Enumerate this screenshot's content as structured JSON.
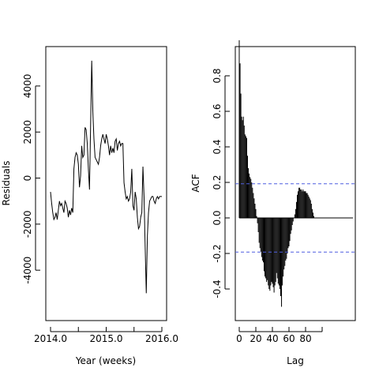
{
  "chart_data": [
    {
      "type": "line",
      "xlabel": "Year (weeks)",
      "ylabel": "Residuals",
      "xlim": [
        2014.0,
        2016.0
      ],
      "ylim": [
        -5400,
        5300
      ],
      "x_ticks": [
        2014.0,
        2014.5,
        2015.0,
        2015.5,
        2016.0
      ],
      "x_tick_labels": [
        "2014.0",
        "",
        "2015.0",
        "",
        "2016.0"
      ],
      "y_ticks": [
        -4000,
        -2000,
        0,
        2000,
        4000
      ],
      "y_tick_labels": [
        "-4000",
        "-2000",
        "0",
        "2000",
        "4000"
      ],
      "series": [
        {
          "x": [
            2014.0,
            2014.02,
            2014.04,
            2014.06,
            2014.08,
            2014.1,
            2014.12,
            2014.14,
            2014.16,
            2014.18,
            2014.2,
            2014.22,
            2014.24,
            2014.26,
            2014.28,
            2014.3,
            2014.32,
            2014.34,
            2014.36,
            2014.38,
            2014.4,
            2014.42,
            2014.44,
            2014.46,
            2014.48,
            2014.5,
            2014.52,
            2014.54,
            2014.56,
            2014.58,
            2014.6,
            2014.62,
            2014.64,
            2014.66,
            2014.68,
            2014.7,
            2014.72,
            2014.74,
            2014.76,
            2014.78,
            2014.8,
            2014.82,
            2014.84,
            2014.86,
            2014.88,
            2014.9,
            2014.92,
            2014.94,
            2014.96,
            2014.98,
            2015.0,
            2015.02,
            2015.04,
            2015.06,
            2015.08,
            2015.1,
            2015.12,
            2015.14,
            2015.16,
            2015.18,
            2015.2,
            2015.22,
            2015.24,
            2015.26,
            2015.28,
            2015.3,
            2015.32,
            2015.34,
            2015.36,
            2015.38,
            2015.4,
            2015.42,
            2015.44,
            2015.46,
            2015.48,
            2015.5,
            2015.52,
            2015.54,
            2015.56,
            2015.58,
            2015.6,
            2015.62,
            2015.64,
            2015.66,
            2015.68,
            2015.7,
            2015.72,
            2015.74,
            2015.76,
            2015.78,
            2015.8,
            2015.82,
            2015.84,
            2015.86,
            2015.88,
            2015.9,
            2015.92,
            2015.94,
            2015.96,
            2015.98,
            2016.0
          ],
          "values": [
            -600,
            -1100,
            -1500,
            -1800,
            -1700,
            -1500,
            -1800,
            -1400,
            -1000,
            -1200,
            -1100,
            -1300,
            -1500,
            -1000,
            -1100,
            -1300,
            -1700,
            -1400,
            -1600,
            -1300,
            -1500,
            400,
            900,
            1100,
            1000,
            600,
            -400,
            100,
            1400,
            900,
            1000,
            2200,
            2100,
            1500,
            400,
            -500,
            2300,
            5100,
            2900,
            1700,
            900,
            800,
            700,
            600,
            900,
            1400,
            1700,
            1900,
            1700,
            1500,
            1900,
            1700,
            1400,
            1000,
            1400,
            1100,
            1300,
            1100,
            1600,
            1700,
            1200,
            1500,
            1600,
            1400,
            1500,
            1500,
            -200,
            -600,
            -900,
            -800,
            -1000,
            -900,
            -600,
            400,
            -1200,
            -1400,
            -600,
            -900,
            -1700,
            -2200,
            -2100,
            -1700,
            -1500,
            500,
            -800,
            -3000,
            -5000,
            -2500,
            -1500,
            -1000,
            -900,
            -800,
            -800,
            -1000,
            -1100,
            -900,
            -800,
            -900,
            -800,
            -800,
            -800
          ]
        }
      ]
    },
    {
      "type": "bar",
      "xlabel": "Lag",
      "ylabel": "ACF",
      "xlim": [
        -2,
        109
      ],
      "ylim": [
        -0.52,
        0.92
      ],
      "x_ticks": [
        0,
        20,
        40,
        60,
        80
      ],
      "x_tick_labels": [
        "0",
        "20",
        "40",
        "60",
        "80"
      ],
      "x_extra_tick": 100,
      "y_ticks": [
        -0.4,
        -0.2,
        0.0,
        0.2,
        0.4,
        0.6,
        0.8
      ],
      "y_tick_labels": [
        "-0.4",
        "-0.2",
        "0.0",
        "0.2",
        "0.4",
        "0.6",
        "0.8"
      ],
      "ci_bounds": [
        0.192,
        -0.192
      ],
      "ci_color": "#4f5fe0",
      "bar_color": "#000000",
      "lags": [
        1,
        2,
        3,
        4,
        5,
        6,
        7,
        8,
        9,
        10,
        11,
        12,
        13,
        14,
        15,
        16,
        17,
        18,
        19,
        20,
        21,
        22,
        23,
        24,
        25,
        26,
        27,
        28,
        29,
        30,
        31,
        32,
        33,
        34,
        35,
        36,
        37,
        38,
        39,
        40,
        41,
        42,
        43,
        44,
        45,
        46,
        47,
        48,
        49,
        50,
        51,
        52,
        53,
        54,
        55,
        56,
        57,
        58,
        59,
        60,
        61,
        62,
        63,
        64,
        65,
        66,
        67,
        68,
        69,
        70,
        71,
        72,
        73,
        74,
        75,
        76,
        77,
        78,
        79,
        80,
        81,
        82,
        83,
        84,
        85,
        86,
        87,
        88,
        89,
        90,
        91,
        92,
        93,
        94,
        95,
        96,
        97,
        98,
        99,
        100,
        101,
        102,
        103,
        104
      ],
      "values": [
        0.87,
        0.7,
        0.57,
        0.55,
        0.57,
        0.52,
        0.47,
        0.46,
        0.45,
        0.35,
        0.28,
        0.25,
        0.23,
        0.22,
        0.2,
        0.17,
        0.14,
        0.11,
        0.08,
        0.05,
        0.01,
        -0.03,
        -0.08,
        -0.14,
        -0.17,
        -0.19,
        -0.22,
        -0.24,
        -0.25,
        -0.3,
        -0.33,
        -0.34,
        -0.36,
        -0.35,
        -0.38,
        -0.4,
        -0.41,
        -0.38,
        -0.36,
        -0.37,
        -0.39,
        -0.42,
        -0.38,
        -0.36,
        -0.31,
        -0.34,
        -0.37,
        -0.38,
        -0.4,
        -0.44,
        -0.5,
        -0.38,
        -0.33,
        -0.29,
        -0.27,
        -0.24,
        -0.23,
        -0.2,
        -0.17,
        -0.16,
        -0.13,
        -0.09,
        -0.07,
        -0.04,
        -0.02,
        0.0,
        0.02,
        0.05,
        0.09,
        0.13,
        0.15,
        0.17,
        0.17,
        0.16,
        0.16,
        0.15,
        0.16,
        0.15,
        0.15,
        0.15,
        0.14,
        0.14,
        0.13,
        0.12,
        0.11,
        0.1,
        0.08,
        0.05,
        0.03,
        0.01,
        0.0,
        0.0,
        0.0,
        0.0,
        0.0,
        0.0,
        0.0,
        0.0,
        0.0,
        0.0,
        0.0,
        0.0,
        0.0,
        0.0
      ]
    }
  ]
}
